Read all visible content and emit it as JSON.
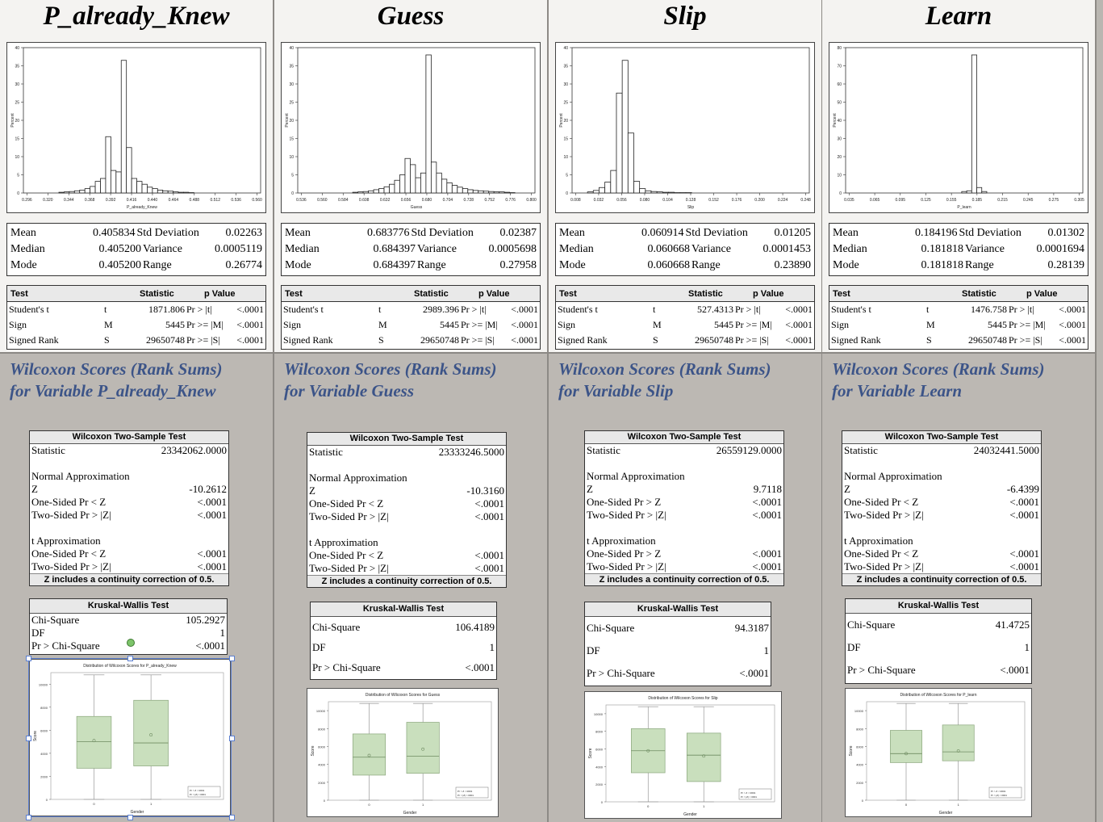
{
  "panels": [
    {
      "title": "P_already_Knew",
      "hist_xlabel": "P_already_Knew",
      "hist_ylabel": "Percent",
      "xticks": [
        "0.296",
        "0.320",
        "0.344",
        "0.368",
        "0.392",
        "0.416",
        "0.440",
        "0.464",
        "0.488",
        "0.512",
        "0.536",
        "0.560"
      ],
      "yticks": [
        "0",
        "5",
        "10",
        "15",
        "20",
        "25",
        "30",
        "35",
        "40"
      ],
      "stats": [
        {
          "k1": "Mean",
          "v1": "0.405834",
          "k2": "Std Deviation",
          "v2": "0.02263"
        },
        {
          "k1": "Median",
          "v1": "0.405200",
          "k2": "Variance",
          "v2": "0.0005119"
        },
        {
          "k1": "Mode",
          "v1": "0.405200",
          "k2": "Range",
          "v2": "0.26774"
        }
      ],
      "tests": [
        {
          "test": "Student's t",
          "sym": "t",
          "stat": "1871.806",
          "pl": "Pr > |t|",
          "pv": "<.0001"
        },
        {
          "test": "Sign",
          "sym": "M",
          "stat": "5445",
          "pl": "Pr >= |M|",
          "pv": "<.0001"
        },
        {
          "test": "Signed Rank",
          "sym": "S",
          "stat": "29650748",
          "pl": "Pr >= |S|",
          "pv": "<.0001"
        }
      ],
      "wil_line1": "Wilcoxon Scores (Rank Sums)",
      "wil_line2": "for Variable P_already_Knew",
      "w_statistic": "23342062.0000",
      "w_z": "-10.2612",
      "w_one_label": "One-Sided Pr < Z",
      "w_one": "<.0001",
      "w_two": "<.0001",
      "t_one_label": "One-Sided Pr < Z",
      "t_one": "<.0001",
      "t_two": "<.0001",
      "kw_chi": "105.2927",
      "kw_df": "1",
      "kw_p": "<.0001",
      "bp_title": "Distribution of Wilcoxon Scores for P_already_Knew"
    },
    {
      "title": "Guess",
      "hist_xlabel": "Guess",
      "hist_ylabel": "Percent",
      "xticks": [
        "0.536",
        "0.560",
        "0.584",
        "0.608",
        "0.632",
        "0.656",
        "0.680",
        "0.704",
        "0.728",
        "0.752",
        "0.776",
        "0.800"
      ],
      "yticks": [
        "0",
        "5",
        "10",
        "15",
        "20",
        "25",
        "30",
        "35",
        "40"
      ],
      "stats": [
        {
          "k1": "Mean",
          "v1": "0.683776",
          "k2": "Std Deviation",
          "v2": "0.02387"
        },
        {
          "k1": "Median",
          "v1": "0.684397",
          "k2": "Variance",
          "v2": "0.0005698"
        },
        {
          "k1": "Mode",
          "v1": "0.684397",
          "k2": "Range",
          "v2": "0.27958"
        }
      ],
      "tests": [
        {
          "test": "Student's t",
          "sym": "t",
          "stat": "2989.396",
          "pl": "Pr > |t|",
          "pv": "<.0001"
        },
        {
          "test": "Sign",
          "sym": "M",
          "stat": "5445",
          "pl": "Pr >= |M|",
          "pv": "<.0001"
        },
        {
          "test": "Signed Rank",
          "sym": "S",
          "stat": "29650748",
          "pl": "Pr >= |S|",
          "pv": "<.0001"
        }
      ],
      "wil_line1": "Wilcoxon Scores (Rank Sums)",
      "wil_line2": "for Variable Guess",
      "w_statistic": "23333246.5000",
      "w_z": "-10.3160",
      "w_one_label": "One-Sided Pr < Z",
      "w_one": "<.0001",
      "w_two": "<.0001",
      "t_one_label": "One-Sided Pr < Z",
      "t_one": "<.0001",
      "t_two": "<.0001",
      "kw_chi": "106.4189",
      "kw_df": "1",
      "kw_p": "<.0001",
      "bp_title": "Distribution of Wilcoxon Scores for Guess"
    },
    {
      "title": "Slip",
      "hist_xlabel": "Slip",
      "hist_ylabel": "Percent",
      "xticks": [
        "0.008",
        "0.032",
        "0.056",
        "0.080",
        "0.104",
        "0.128",
        "0.152",
        "0.176",
        "0.200",
        "0.224",
        "0.248"
      ],
      "yticks": [
        "0",
        "5",
        "10",
        "15",
        "20",
        "25",
        "30",
        "35",
        "40"
      ],
      "stats": [
        {
          "k1": "Mean",
          "v1": "0.060914",
          "k2": "Std Deviation",
          "v2": "0.01205"
        },
        {
          "k1": "Median",
          "v1": "0.060668",
          "k2": "Variance",
          "v2": "0.0001453"
        },
        {
          "k1": "Mode",
          "v1": "0.060668",
          "k2": "Range",
          "v2": "0.23890"
        }
      ],
      "tests": [
        {
          "test": "Student's t",
          "sym": "t",
          "stat": "527.4313",
          "pl": "Pr > |t|",
          "pv": "<.0001"
        },
        {
          "test": "Sign",
          "sym": "M",
          "stat": "5445",
          "pl": "Pr >= |M|",
          "pv": "<.0001"
        },
        {
          "test": "Signed Rank",
          "sym": "S",
          "stat": "29650748",
          "pl": "Pr >= |S|",
          "pv": "<.0001"
        }
      ],
      "wil_line1": "Wilcoxon Scores (Rank Sums)",
      "wil_line2": "for Variable Slip",
      "w_statistic": "26559129.0000",
      "w_z": "9.7118",
      "w_one_label": "One-Sided Pr > Z",
      "w_one": "<.0001",
      "w_two": "<.0001",
      "t_one_label": "One-Sided Pr > Z",
      "t_one": "<.0001",
      "t_two": "<.0001",
      "kw_chi": "94.3187",
      "kw_df": "1",
      "kw_p": "<.0001",
      "bp_title": "Distribution of Wilcoxon Scores for Slip"
    },
    {
      "title": "Learn",
      "hist_xlabel": "P_learn",
      "hist_ylabel": "Percent",
      "xticks": [
        "0.035",
        "0.065",
        "0.095",
        "0.125",
        "0.155",
        "0.185",
        "0.215",
        "0.245",
        "0.275",
        "0.305"
      ],
      "yticks": [
        "0",
        "10",
        "20",
        "30",
        "40",
        "50",
        "60",
        "70",
        "80"
      ],
      "stats": [
        {
          "k1": "Mean",
          "v1": "0.184196",
          "k2": "Std Deviation",
          "v2": "0.01302"
        },
        {
          "k1": "Median",
          "v1": "0.181818",
          "k2": "Variance",
          "v2": "0.0001694"
        },
        {
          "k1": "Mode",
          "v1": "0.181818",
          "k2": "Range",
          "v2": "0.28139"
        }
      ],
      "tests": [
        {
          "test": "Student's t",
          "sym": "t",
          "stat": "1476.758",
          "pl": "Pr > |t|",
          "pv": "<.0001"
        },
        {
          "test": "Sign",
          "sym": "M",
          "stat": "5445",
          "pl": "Pr >= |M|",
          "pv": "<.0001"
        },
        {
          "test": "Signed Rank",
          "sym": "S",
          "stat": "29650748",
          "pl": "Pr >= |S|",
          "pv": "<.0001"
        }
      ],
      "wil_line1": "Wilcoxon Scores (Rank Sums)",
      "wil_line2": "for Variable Learn",
      "w_statistic": "24032441.5000",
      "w_z": "-6.4399",
      "w_one_label": "One-Sided Pr < Z",
      "w_one": "<.0001",
      "w_two": "<.0001",
      "t_one_label": "One-Sided Pr < Z",
      "t_one": "<.0001",
      "t_two": "<.0001",
      "kw_chi": "41.4725",
      "kw_df": "1",
      "kw_p": "<.0001",
      "bp_title": "Distribution of Wilcoxon Scores for P_learn"
    }
  ],
  "labels": {
    "test_hdr": "Test",
    "statistic_hdr": "Statistic",
    "pvalue_hdr": "p Value",
    "wilcoxon_hdr": "Wilcoxon Two-Sample Test",
    "statistic": "Statistic",
    "normal_approx": "Normal Approximation",
    "z": "Z",
    "two_sided": "Two-Sided Pr > |Z|",
    "t_approx": "t Approximation",
    "note": "Z includes a continuity correction of 0.5.",
    "kw_hdr": "Kruskal-Wallis Test",
    "chi_square": "Chi-Square",
    "df": "DF",
    "pr_chi": "Pr > Chi-Square",
    "bp_xlabel": "Gender",
    "bp_ylabel": "Score",
    "bp_legend1": "Pr > Z  <.0001",
    "bp_legend2": "Pr > |Z|  <.0001",
    "gender_ticks": [
      "0",
      "1"
    ]
  },
  "chart_data": [
    {
      "type": "bar",
      "title": "P_already_Knew",
      "xlabel": "P_already_Knew",
      "ylabel": "Percent",
      "ylim": [
        0,
        40
      ],
      "categories": [
        "0.332",
        "0.338",
        "0.344",
        "0.350",
        "0.356",
        "0.362",
        "0.368",
        "0.374",
        "0.380",
        "0.386",
        "0.392",
        "0.398",
        "0.404",
        "0.410",
        "0.416",
        "0.422",
        "0.428",
        "0.434",
        "0.440",
        "0.446",
        "0.452",
        "0.458",
        "0.464",
        "0.470",
        "0.476",
        "0.482"
      ],
      "values": [
        0.2,
        0.3,
        0.4,
        0.6,
        0.8,
        1.2,
        1.8,
        3.2,
        4,
        15.5,
        6.2,
        5.8,
        36.5,
        12.5,
        4,
        3.2,
        2.4,
        1.6,
        1.2,
        0.8,
        0.6,
        0.5,
        0.3,
        0.2,
        0.2,
        0.1
      ]
    },
    {
      "type": "bar",
      "title": "Guess",
      "xlabel": "Guess",
      "ylabel": "Percent",
      "ylim": [
        0,
        40
      ],
      "categories": [
        "0.596",
        "0.602",
        "0.608",
        "0.614",
        "0.620",
        "0.626",
        "0.632",
        "0.638",
        "0.644",
        "0.650",
        "0.656",
        "0.662",
        "0.668",
        "0.674",
        "0.680",
        "0.686",
        "0.692",
        "0.698",
        "0.704",
        "0.710",
        "0.716",
        "0.722",
        "0.728",
        "0.734",
        "0.740",
        "0.746",
        "0.752",
        "0.758",
        "0.764",
        "0.770",
        "0.776"
      ],
      "values": [
        0.2,
        0.3,
        0.4,
        0.6,
        0.9,
        1.2,
        1.7,
        2.4,
        3.5,
        5,
        9.5,
        7.8,
        4.2,
        5.5,
        38,
        8.5,
        5.5,
        3.8,
        2.8,
        2.1,
        1.6,
        1.2,
        0.9,
        0.7,
        0.6,
        0.5,
        0.4,
        0.3,
        0.3,
        0.2,
        0.1
      ]
    },
    {
      "type": "bar",
      "title": "Slip",
      "xlabel": "Slip",
      "ylabel": "Percent",
      "ylim": [
        0,
        40
      ],
      "categories": [
        "0.023",
        "0.029",
        "0.035",
        "0.041",
        "0.047",
        "0.053",
        "0.059",
        "0.065",
        "0.071",
        "0.077",
        "0.083",
        "0.089",
        "0.095",
        "0.101",
        "0.107",
        "0.113",
        "0.119",
        "0.125"
      ],
      "values": [
        0.3,
        0.7,
        1.5,
        3,
        6.2,
        27.5,
        36.5,
        16.5,
        3.2,
        1.2,
        0.6,
        0.4,
        0.3,
        0.2,
        0.2,
        0.1,
        0.1,
        0.1
      ]
    },
    {
      "type": "bar",
      "title": "Learn",
      "xlabel": "P_learn",
      "ylabel": "Percent",
      "ylim": [
        0,
        80
      ],
      "categories": [
        "0.170",
        "0.176",
        "0.182",
        "0.188",
        "0.194"
      ],
      "values": [
        0.8,
        1.2,
        76,
        3,
        0.8
      ]
    },
    {
      "type": "box",
      "title": "Distribution of Wilcoxon Scores for P_already_Knew",
      "xlabel": "Gender",
      "ylabel": "Score",
      "ylim": [
        0,
        11000
      ],
      "categories": [
        "0",
        "1"
      ],
      "series": [
        {
          "name": "0",
          "min": 0,
          "q1": 2700,
          "median": 5000,
          "q3": 7200,
          "max": 10800,
          "mean": 5100
        },
        {
          "name": "1",
          "min": 0,
          "q1": 2900,
          "median": 4900,
          "q3": 8600,
          "max": 10800,
          "mean": 5600
        }
      ]
    },
    {
      "type": "box",
      "title": "Distribution of Wilcoxon Scores for Guess",
      "xlabel": "Gender",
      "ylabel": "Score",
      "ylim": [
        0,
        11000
      ],
      "categories": [
        "0",
        "1"
      ],
      "series": [
        {
          "name": "0",
          "min": 0,
          "q1": 2800,
          "median": 4800,
          "q3": 7400,
          "max": 10800,
          "mean": 5000
        },
        {
          "name": "1",
          "min": 0,
          "q1": 3000,
          "median": 4900,
          "q3": 8700,
          "max": 10800,
          "mean": 5700
        }
      ]
    },
    {
      "type": "box",
      "title": "Distribution of Wilcoxon Scores for Slip",
      "xlabel": "Gender",
      "ylabel": "Score",
      "ylim": [
        0,
        11000
      ],
      "categories": [
        "0",
        "1"
      ],
      "series": [
        {
          "name": "0",
          "min": 0,
          "q1": 3300,
          "median": 5800,
          "q3": 8300,
          "max": 10800,
          "mean": 5800
        },
        {
          "name": "1",
          "min": 0,
          "q1": 2300,
          "median": 5300,
          "q3": 7800,
          "max": 10800,
          "mean": 5200
        }
      ]
    },
    {
      "type": "box",
      "title": "Distribution of Wilcoxon Scores for P_learn",
      "xlabel": "Gender",
      "ylabel": "Score",
      "ylim": [
        0,
        11000
      ],
      "categories": [
        "0",
        "1"
      ],
      "series": [
        {
          "name": "0",
          "min": 0,
          "q1": 4200,
          "median": 5200,
          "q3": 7800,
          "max": 10800,
          "mean": 5200
        },
        {
          "name": "1",
          "min": 0,
          "q1": 4400,
          "median": 5400,
          "q3": 8400,
          "max": 10800,
          "mean": 5500
        }
      ]
    }
  ]
}
